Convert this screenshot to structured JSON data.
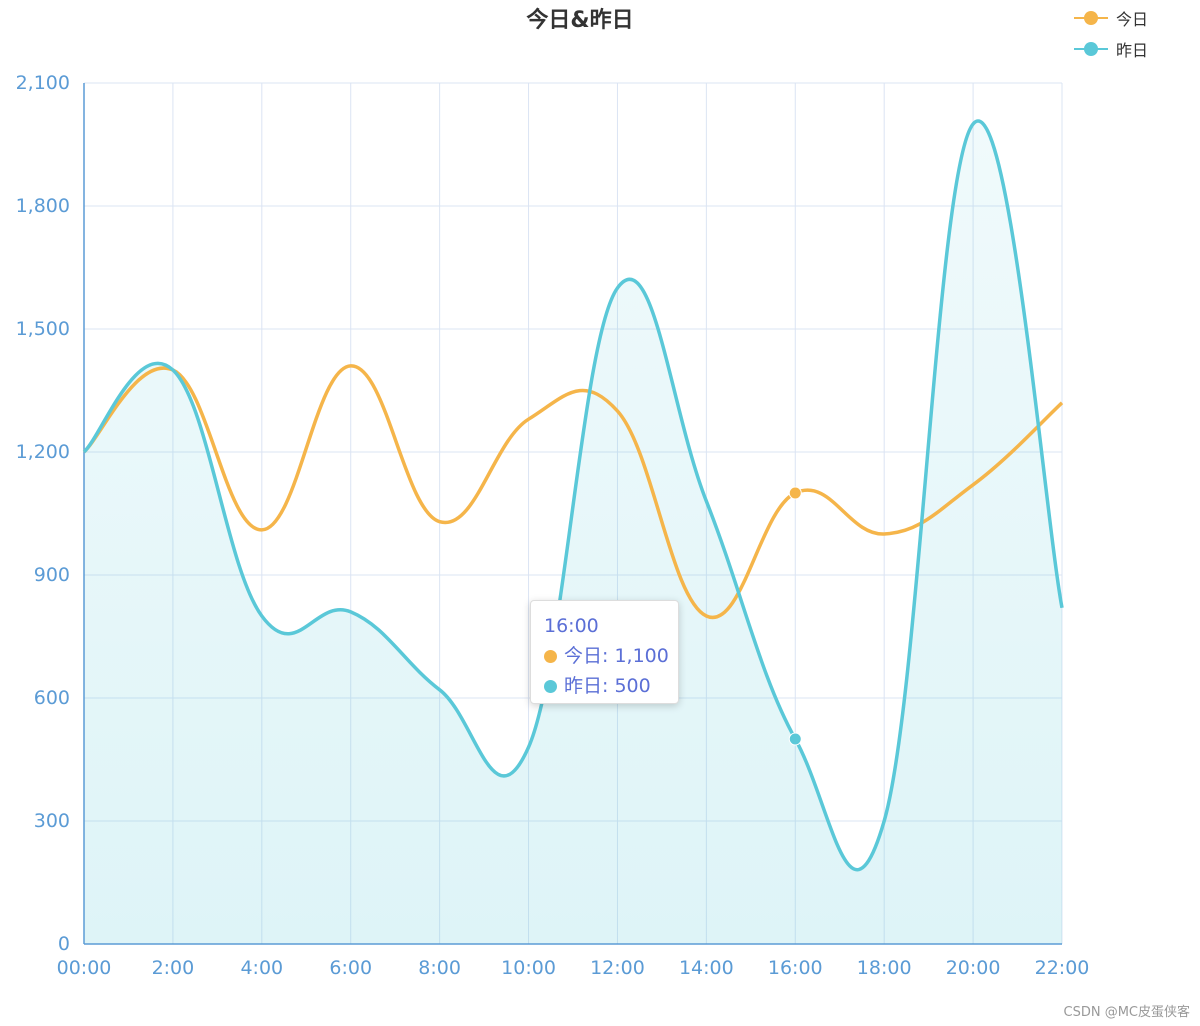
{
  "chart_data": {
    "type": "line",
    "title": "今日&昨日",
    "x": [
      "00:00",
      "2:00",
      "4:00",
      "6:00",
      "8:00",
      "10:00",
      "12:00",
      "14:00",
      "16:00",
      "18:00",
      "20:00",
      "22:00"
    ],
    "series": [
      {
        "name": "今日",
        "color": "#f5b54a",
        "values": [
          1200,
          1400,
          1010,
          1410,
          1030,
          1280,
          1300,
          800,
          1100,
          1000,
          1120,
          1320
        ],
        "area": false
      },
      {
        "name": "昨日",
        "color": "#5ac8d8",
        "values": [
          1200,
          1400,
          800,
          810,
          620,
          480,
          1600,
          1080,
          500,
          300,
          2000,
          820
        ],
        "area": true
      }
    ],
    "y_ticks": [
      "0",
      "300",
      "600",
      "900",
      "1,200",
      "1,500",
      "1,800",
      "2,100"
    ],
    "ylim": [
      0,
      2100
    ],
    "grid": true,
    "legend_position": "top-right",
    "smooth": true,
    "highlight_index": 8
  },
  "tooltip": {
    "header": "16:00",
    "rows": [
      {
        "text": "今日: 1,100",
        "color": "#f5b54a"
      },
      {
        "text": "昨日: 500",
        "color": "#5ac8d8"
      }
    ]
  },
  "watermark": "CSDN @MC皮蛋侠客"
}
